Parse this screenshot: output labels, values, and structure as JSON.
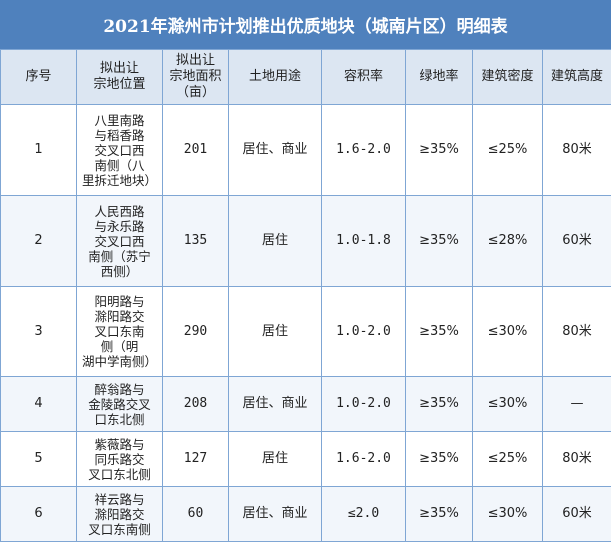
{
  "title": "2021年滁州市计划推出优质地块（城南片区）明细表",
  "columns": [
    "序号",
    "拟出让\n宗地位置",
    "拟出让\n宗地面积\n（亩）",
    "土地用途",
    "容积率",
    "绿地率",
    "建筑密度",
    "建筑高度"
  ],
  "rows": [
    {
      "no": "1",
      "location": "八里南路\n与稻香路\n交叉口西\n南侧（八\n里拆迁地块）",
      "area": "201",
      "use": "居住、商业",
      "far": "1.6-2.0",
      "green": "≥35%",
      "density": "≤25%",
      "height": "80米"
    },
    {
      "no": "2",
      "location": "人民西路\n与永乐路\n交叉口西\n南侧（苏宁\n西侧）",
      "area": "135",
      "use": "居住",
      "far": "1.0-1.8",
      "green": "≥35%",
      "density": "≤28%",
      "height": "60米"
    },
    {
      "no": "3",
      "location": "阳明路与\n滁阳路交\n叉口东南\n侧（明\n湖中学南侧）",
      "area": "290",
      "use": "居住",
      "far": "1.0-2.0",
      "green": "≥35%",
      "density": "≤30%",
      "height": "80米"
    },
    {
      "no": "4",
      "location": "醉翁路与\n金陵路交叉\n口东北侧",
      "area": "208",
      "use": "居住、商业",
      "far": "1.0-2.0",
      "green": "≥35%",
      "density": "≤30%",
      "height": "—"
    },
    {
      "no": "5",
      "location": "紫薇路与\n同乐路交\n叉口东北侧",
      "area": "127",
      "use": "居住",
      "far": "1.6-2.0",
      "green": "≥35%",
      "density": "≤25%",
      "height": "80米"
    },
    {
      "no": "6",
      "location": "祥云路与\n滁阳路交\n叉口东南侧",
      "area": "60",
      "use": "居住、商业",
      "far": "≤2.0",
      "green": "≥35%",
      "density": "≤30%",
      "height": "60米"
    }
  ]
}
